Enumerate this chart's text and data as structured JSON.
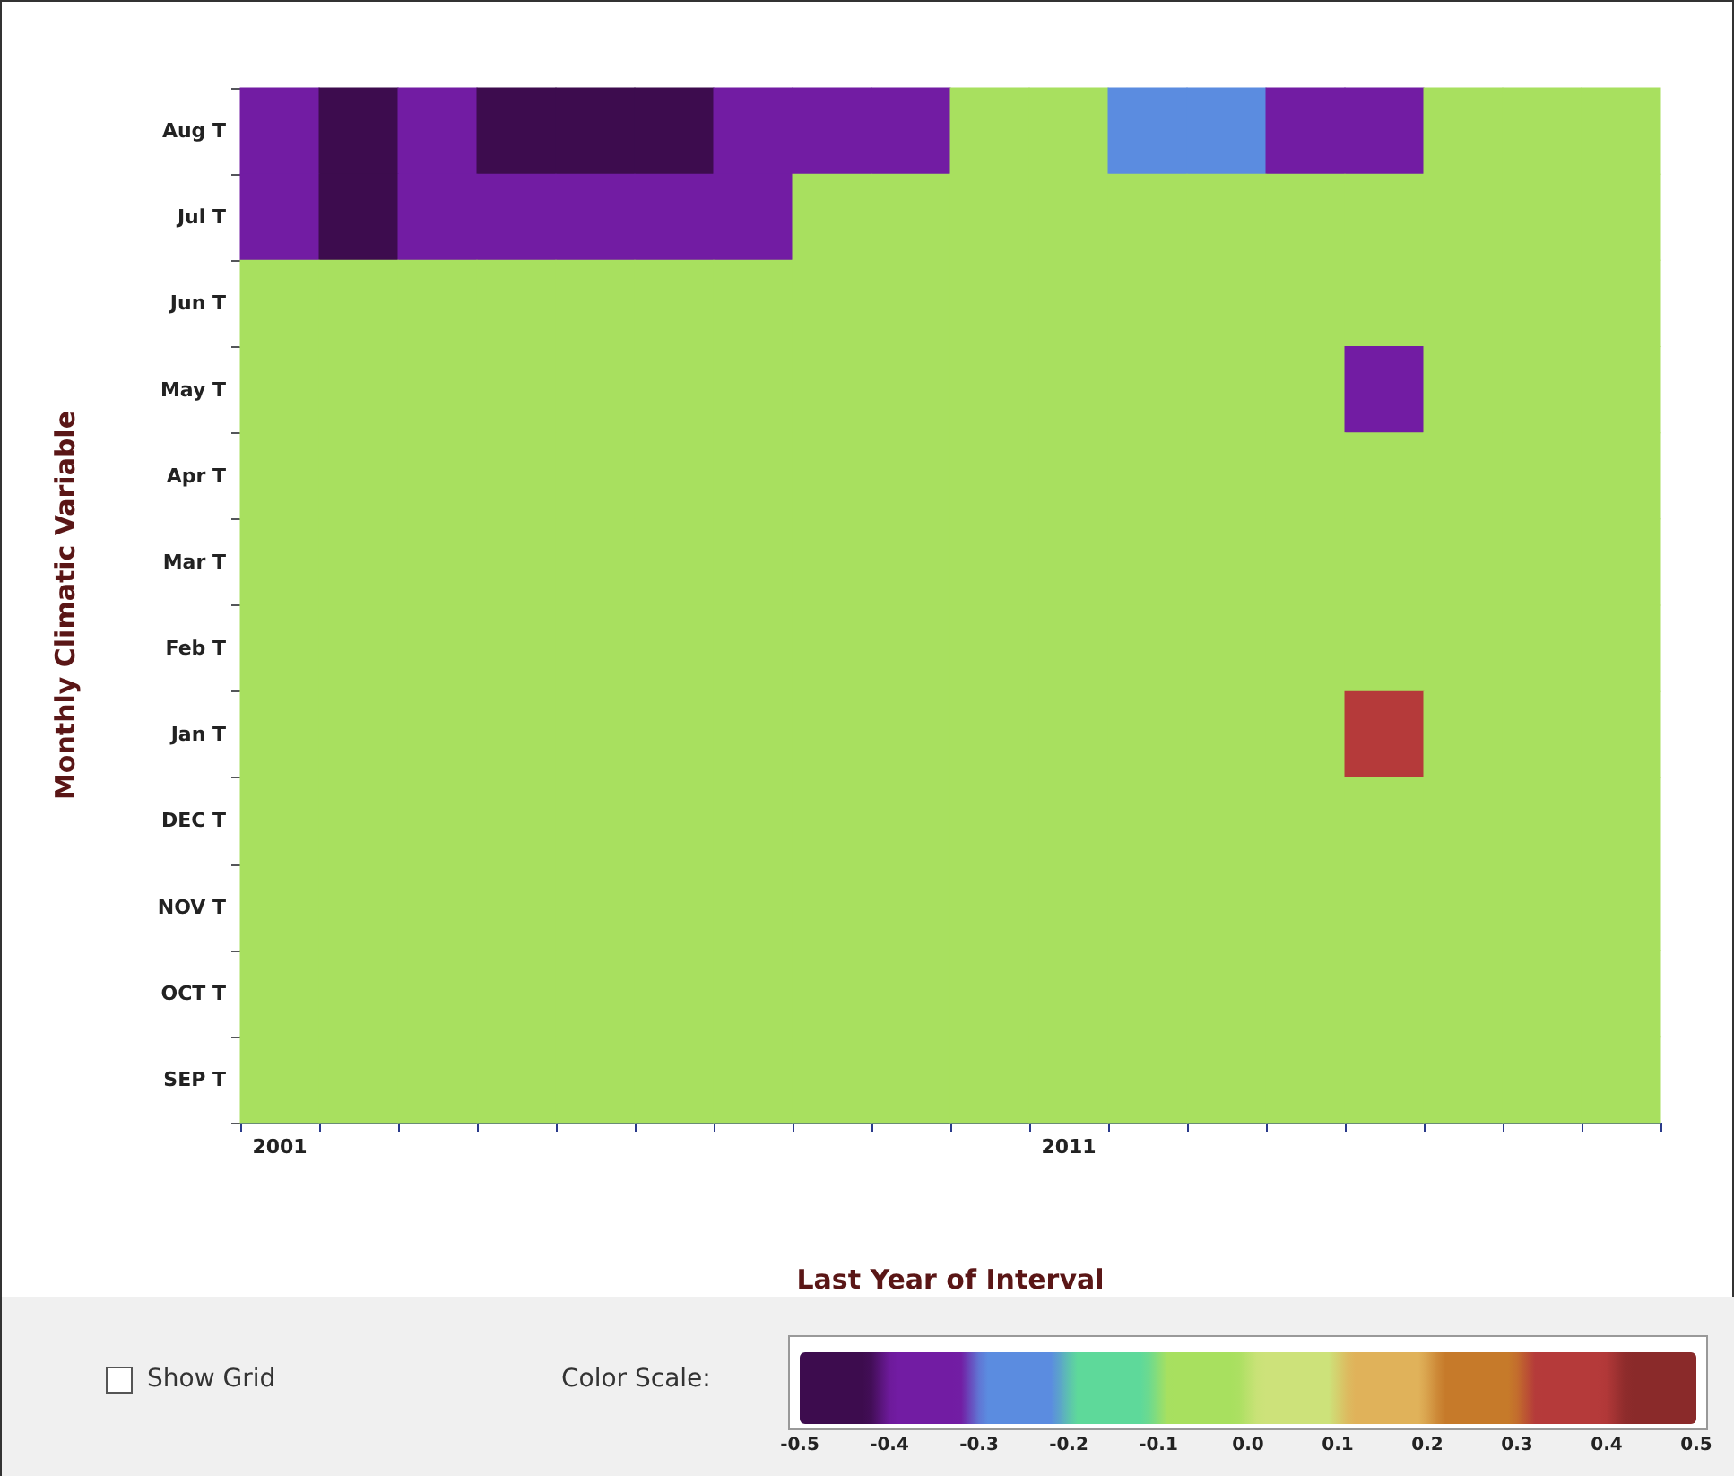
{
  "chart_data": {
    "type": "heatmap",
    "xlabel": "Last Year of Interval",
    "ylabel": "Monthly Climatic Variable",
    "categories": [
      "2001",
      null,
      null,
      null,
      null,
      null,
      null,
      null,
      null,
      null,
      "2011",
      null,
      null,
      null,
      null,
      null,
      null,
      null
    ],
    "y_categories": [
      "Aug T",
      "Jul T",
      "Jun T",
      "May T",
      "Apr T",
      "Mar T",
      "Feb T",
      "Jan T",
      "DEC T",
      "NOV T",
      "OCT T",
      "SEP T"
    ],
    "cells": [
      [
        -0.35,
        -0.45,
        -0.35,
        -0.45,
        -0.45,
        -0.45,
        -0.35,
        -0.35,
        -0.35,
        -0.05,
        -0.05,
        -0.25,
        -0.25,
        -0.35,
        -0.35,
        -0.05,
        -0.05,
        -0.05
      ],
      [
        -0.35,
        -0.45,
        -0.35,
        -0.35,
        -0.35,
        -0.35,
        -0.35,
        -0.05,
        -0.05,
        -0.05,
        -0.05,
        -0.05,
        -0.05,
        -0.05,
        -0.05,
        -0.05,
        -0.05,
        -0.05
      ],
      [
        -0.05,
        -0.05,
        -0.05,
        -0.05,
        -0.05,
        -0.05,
        -0.05,
        -0.05,
        -0.05,
        -0.05,
        -0.05,
        -0.05,
        -0.05,
        -0.05,
        -0.05,
        -0.05,
        -0.05,
        -0.05
      ],
      [
        -0.05,
        -0.05,
        -0.05,
        -0.05,
        -0.05,
        -0.05,
        -0.05,
        -0.05,
        -0.05,
        -0.05,
        -0.05,
        -0.05,
        -0.05,
        -0.05,
        -0.35,
        -0.05,
        -0.05,
        -0.05
      ],
      [
        -0.05,
        -0.05,
        -0.05,
        -0.05,
        -0.05,
        -0.05,
        -0.05,
        -0.05,
        -0.05,
        -0.05,
        -0.05,
        -0.05,
        -0.05,
        -0.05,
        -0.05,
        -0.05,
        -0.05,
        -0.05
      ],
      [
        -0.05,
        -0.05,
        -0.05,
        -0.05,
        -0.05,
        -0.05,
        -0.05,
        -0.05,
        -0.05,
        -0.05,
        -0.05,
        -0.05,
        -0.05,
        -0.05,
        -0.05,
        -0.05,
        -0.05,
        -0.05
      ],
      [
        -0.05,
        -0.05,
        -0.05,
        -0.05,
        -0.05,
        -0.05,
        -0.05,
        -0.05,
        -0.05,
        -0.05,
        -0.05,
        -0.05,
        -0.05,
        -0.05,
        -0.05,
        -0.05,
        -0.05,
        -0.05
      ],
      [
        -0.05,
        -0.05,
        -0.05,
        -0.05,
        -0.05,
        -0.05,
        -0.05,
        -0.05,
        -0.05,
        -0.05,
        -0.05,
        -0.05,
        -0.05,
        -0.05,
        0.35,
        -0.05,
        -0.05,
        -0.05
      ],
      [
        -0.05,
        -0.05,
        -0.05,
        -0.05,
        -0.05,
        -0.05,
        -0.05,
        -0.05,
        -0.05,
        -0.05,
        -0.05,
        -0.05,
        -0.05,
        -0.05,
        -0.05,
        -0.05,
        -0.05,
        -0.05
      ],
      [
        -0.05,
        -0.05,
        -0.05,
        -0.05,
        -0.05,
        -0.05,
        -0.05,
        -0.05,
        -0.05,
        -0.05,
        -0.05,
        -0.05,
        -0.05,
        -0.05,
        -0.05,
        -0.05,
        -0.05,
        -0.05
      ],
      [
        -0.05,
        -0.05,
        -0.05,
        -0.05,
        -0.05,
        -0.05,
        -0.05,
        -0.05,
        -0.05,
        -0.05,
        -0.05,
        -0.05,
        -0.05,
        -0.05,
        -0.05,
        -0.05,
        -0.05,
        -0.05
      ],
      [
        -0.05,
        -0.05,
        -0.05,
        -0.05,
        -0.05,
        -0.05,
        -0.05,
        -0.05,
        -0.05,
        -0.05,
        -0.05,
        -0.05,
        -0.05,
        -0.05,
        -0.05,
        -0.05,
        -0.05,
        -0.05
      ]
    ],
    "clim": [
      -0.5,
      0.5
    ],
    "cticks": [
      -0.5,
      -0.4,
      -0.3,
      -0.2,
      -0.1,
      {
        "value": 0,
        "label": "0.0"
      },
      0.1,
      0.2,
      0.3,
      0.4,
      0.5
    ],
    "colors": [
      "#3d0c4e",
      "#721ca3",
      "#5b8ce0",
      "#5ed99a",
      "#a8e05f",
      "#cde27a",
      "#e0b25a",
      "#c67a2a",
      "#b53a3a",
      "#8a2a2a"
    ],
    "annotations": [
      "Show Grid",
      "Color Scale:"
    ]
  }
}
